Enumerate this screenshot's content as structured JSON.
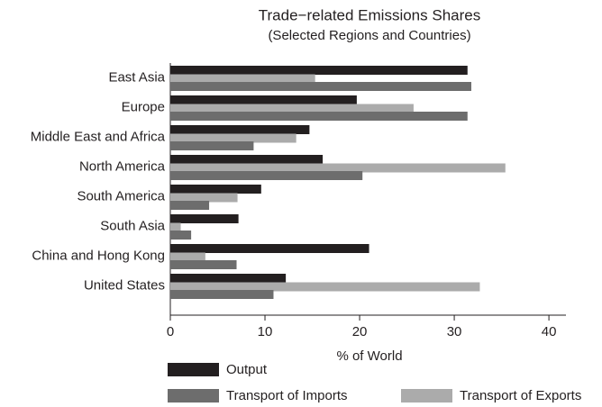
{
  "chart_data": {
    "type": "bar",
    "orientation": "horizontal",
    "title": "Trade−related Emissions Shares",
    "subtitle": "(Selected Regions and Countries)",
    "x_label": "% of World",
    "categories": [
      "East Asia",
      "Europe",
      "Middle East and Africa",
      "North America",
      "South America",
      "South Asia",
      "China and Hong Kong",
      "United States"
    ],
    "series": [
      {
        "name": "Output",
        "color": "#231f20",
        "values": [
          31.4,
          19.7,
          14.7,
          16.1,
          9.6,
          7.2,
          21.0,
          12.2
        ]
      },
      {
        "name": "Transport of Imports",
        "color": "#6d6d6d",
        "values": [
          31.8,
          31.4,
          8.8,
          20.3,
          4.1,
          2.2,
          7.0,
          10.9
        ]
      },
      {
        "name": "Transport of Exports",
        "color": "#ababab",
        "values": [
          15.3,
          25.7,
          13.3,
          35.4,
          7.1,
          1.1,
          3.7,
          32.7
        ]
      }
    ],
    "xlim": [
      0,
      41.8
    ],
    "xticks": [
      0,
      10,
      20,
      30,
      40
    ],
    "grid": false
  }
}
